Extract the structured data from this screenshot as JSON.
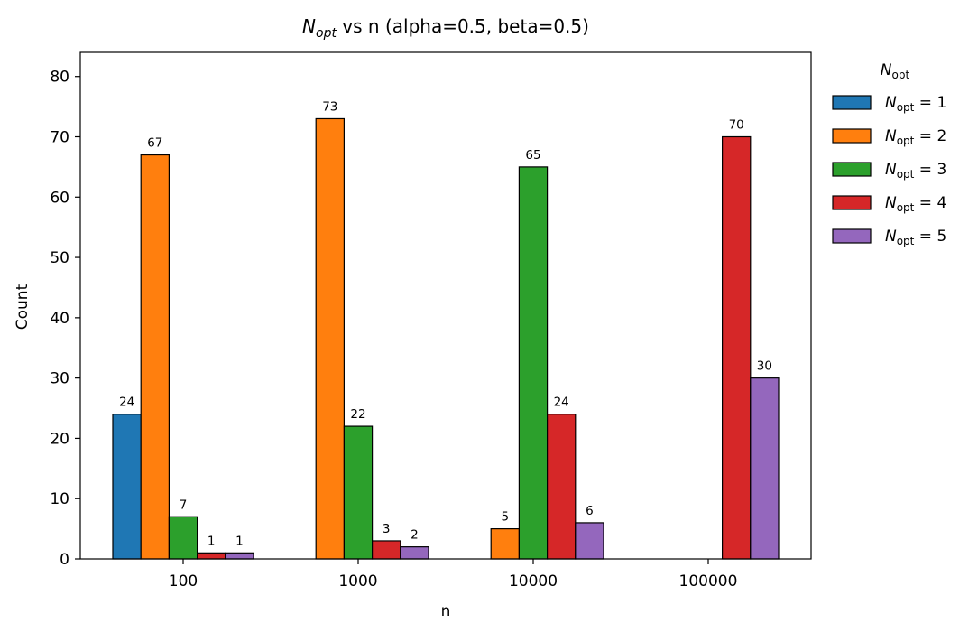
{
  "chart_data": {
    "type": "bar",
    "title": "N_opt vs n  (alpha=0.5, beta=0.5)",
    "title_math": "N",
    "title_math_sub": "opt",
    "title_rest": " vs n  (alpha=0.5, beta=0.5)",
    "xlabel": "n",
    "ylabel": "Count",
    "categories": [
      "100",
      "1000",
      "10000",
      "100000"
    ],
    "ylim": [
      0,
      84
    ],
    "yticks": [
      0,
      10,
      20,
      30,
      40,
      50,
      60,
      70,
      80
    ],
    "grid": false,
    "legend_placement": "outside-right",
    "legend_title": "N_opt",
    "legend_title_main": "N",
    "legend_title_sub": "opt",
    "series": [
      {
        "name": "N_opt = 1",
        "legend_value": "1",
        "color": "#1f77b4",
        "values": [
          24,
          0,
          0,
          0
        ]
      },
      {
        "name": "N_opt = 2",
        "legend_value": "2",
        "color": "#ff7f0e",
        "values": [
          67,
          73,
          5,
          0
        ]
      },
      {
        "name": "N_opt = 3",
        "legend_value": "3",
        "color": "#2ca02c",
        "values": [
          7,
          22,
          65,
          0
        ]
      },
      {
        "name": "N_opt = 4",
        "legend_value": "4",
        "color": "#d62728",
        "values": [
          1,
          3,
          24,
          70
        ]
      },
      {
        "name": "N_opt = 5",
        "legend_value": "5",
        "color": "#9467bd",
        "values": [
          1,
          2,
          6,
          30
        ]
      }
    ]
  }
}
